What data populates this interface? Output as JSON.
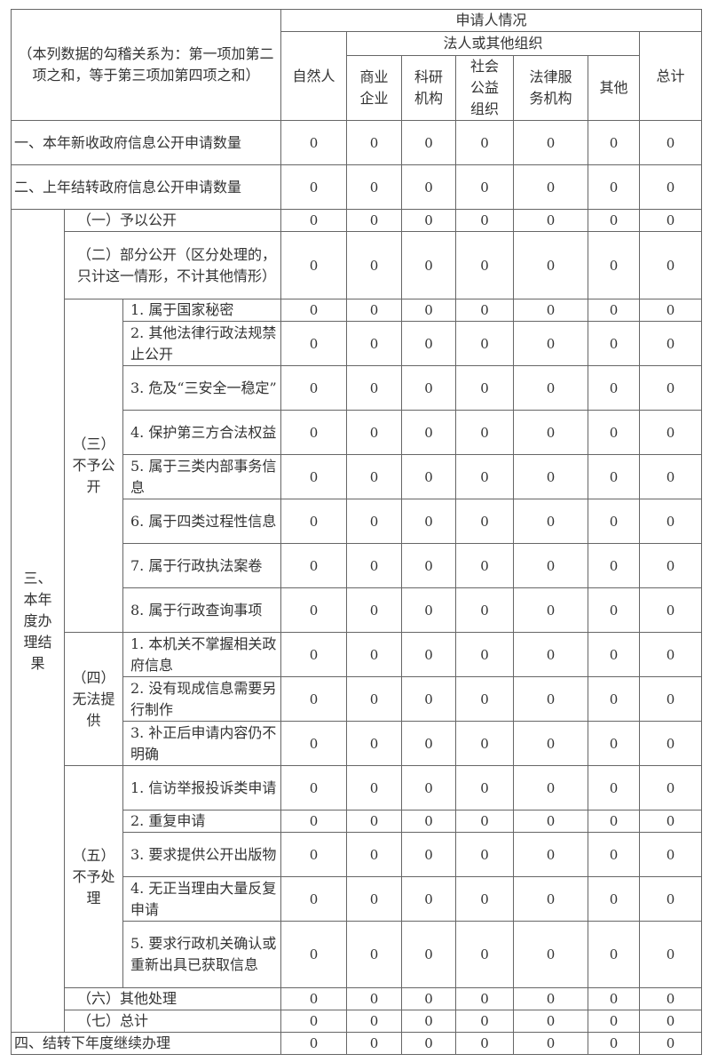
{
  "header": {
    "note": "（本列数据的勾稽关系为：第一项加第二项之和，等于第三项加第四项之和）",
    "applicant": "申请人情况",
    "natural": "自然人",
    "legal_group": "法人或其他组织",
    "legal_cols": [
      "商业企业",
      "科研机构",
      "社会公益组织",
      "法律服务机构",
      "其他"
    ],
    "total": "总计"
  },
  "rows_top": [
    {
      "label": "一、本年新收政府信息公开申请数量",
      "values": [
        0,
        0,
        0,
        0,
        0,
        0,
        0
      ]
    },
    {
      "label": "二、上年结转政府信息公开申请数量",
      "values": [
        0,
        0,
        0,
        0,
        0,
        0,
        0
      ]
    }
  ],
  "section3": {
    "label": "三、本年度办理结果",
    "items": [
      {
        "label": "（一）予以公开",
        "values": [
          0,
          0,
          0,
          0,
          0,
          0,
          0
        ]
      },
      {
        "label": "（二）部分公开（区分处理的，只计这一情形，不计其他情形）",
        "values": [
          0,
          0,
          0,
          0,
          0,
          0,
          0
        ]
      },
      {
        "label": "（三）不予公开",
        "children": [
          {
            "label": "1. 属于国家秘密",
            "values": [
              0,
              0,
              0,
              0,
              0,
              0,
              0
            ]
          },
          {
            "label": "2. 其他法律行政法规禁止公开",
            "values": [
              0,
              0,
              0,
              0,
              0,
              0,
              0
            ]
          },
          {
            "label": "3. 危及“三安全一稳定”",
            "values": [
              0,
              0,
              0,
              0,
              0,
              0,
              0
            ]
          },
          {
            "label": "4. 保护第三方合法权益",
            "values": [
              0,
              0,
              0,
              0,
              0,
              0,
              0
            ]
          },
          {
            "label": "5. 属于三类内部事务信息",
            "values": [
              0,
              0,
              0,
              0,
              0,
              0,
              0
            ]
          },
          {
            "label": "6. 属于四类过程性信息",
            "values": [
              0,
              0,
              0,
              0,
              0,
              0,
              0
            ]
          },
          {
            "label": "7. 属于行政执法案卷",
            "values": [
              0,
              0,
              0,
              0,
              0,
              0,
              0
            ]
          },
          {
            "label": "8. 属于行政查询事项",
            "values": [
              0,
              0,
              0,
              0,
              0,
              0,
              0
            ]
          }
        ]
      },
      {
        "label": "（四）无法提供",
        "children": [
          {
            "label": "1. 本机关不掌握相关政府信息",
            "values": [
              0,
              0,
              0,
              0,
              0,
              0,
              0
            ]
          },
          {
            "label": "2. 没有现成信息需要另行制作",
            "values": [
              0,
              0,
              0,
              0,
              0,
              0,
              0
            ]
          },
          {
            "label": "3. 补正后申请内容仍不明确",
            "values": [
              0,
              0,
              0,
              0,
              0,
              0,
              0
            ]
          }
        ]
      },
      {
        "label": "（五）不予处理",
        "children": [
          {
            "label": "1. 信访举报投诉类申请",
            "values": [
              0,
              0,
              0,
              0,
              0,
              0,
              0
            ]
          },
          {
            "label": "2. 重复申请",
            "values": [
              0,
              0,
              0,
              0,
              0,
              0,
              0
            ]
          },
          {
            "label": "3. 要求提供公开出版物",
            "values": [
              0,
              0,
              0,
              0,
              0,
              0,
              0
            ]
          },
          {
            "label": "4. 无正当理由大量反复申请",
            "values": [
              0,
              0,
              0,
              0,
              0,
              0,
              0
            ]
          },
          {
            "label": "5. 要求行政机关确认或重新出具已获取信息",
            "values": [
              0,
              0,
              0,
              0,
              0,
              0,
              0
            ]
          }
        ]
      },
      {
        "label": "（六）其他处理",
        "values": [
          0,
          0,
          0,
          0,
          0,
          0,
          0
        ]
      },
      {
        "label": "（七）总计",
        "values": [
          0,
          0,
          0,
          0,
          0,
          0,
          0
        ]
      }
    ]
  },
  "row4": {
    "label": "四、结转下年度继续办理",
    "values": [
      0,
      0,
      0,
      0,
      0,
      0,
      0
    ]
  }
}
